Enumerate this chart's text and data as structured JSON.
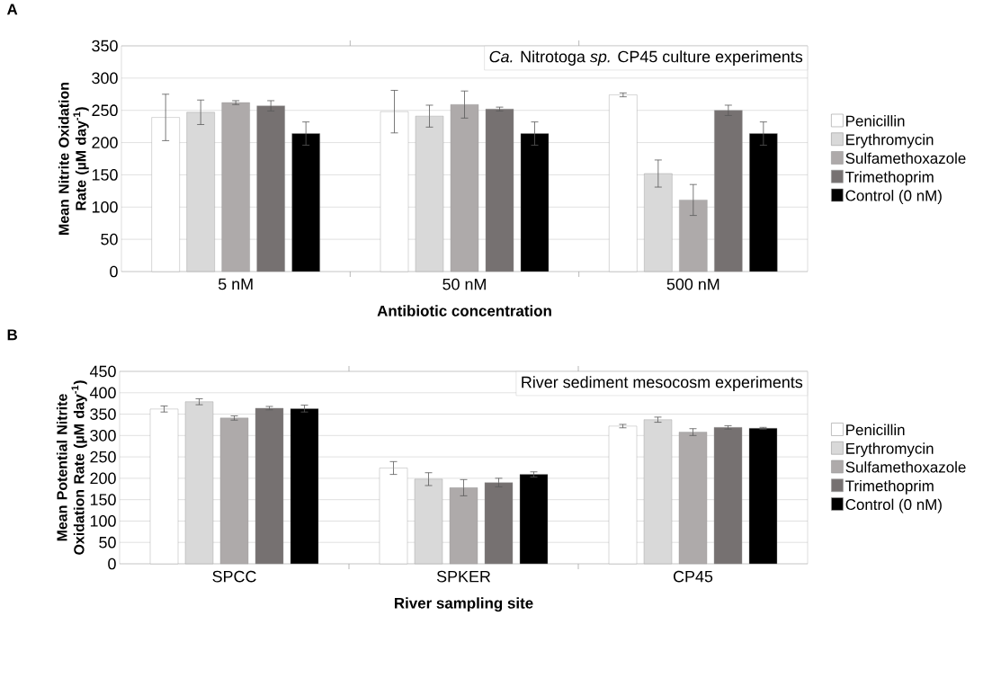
{
  "chart_data": [
    {
      "type": "bar",
      "annotations": [
        "A",
        "*Ca.* Nitrotoga *sp.* CP45 culture experiments"
      ],
      "xlabel": "Antibiotic concentration",
      "ylabel": "Mean Nitrite Oxidation Rate (µM day$^{-1}$)",
      "categories": [
        "5 nM",
        "50 nM",
        "500 nM"
      ],
      "ylim": [
        0,
        350
      ],
      "yticks": [
        0,
        50,
        100,
        150,
        200,
        250,
        300,
        350
      ],
      "grid": "y",
      "legend": "right",
      "series": [
        {
          "name": "Penicillin",
          "color": "#ffffff",
          "values": [
            239,
            248,
            274
          ],
          "errors": [
            36,
            33,
            3
          ]
        },
        {
          "name": "Erythromycin",
          "color": "#d9d9d9",
          "values": [
            247,
            241,
            152
          ],
          "errors": [
            19,
            17,
            21
          ]
        },
        {
          "name": "Sulfamethoxazole",
          "color": "#aeaaaa",
          "values": [
            262,
            259,
            111
          ],
          "errors": [
            3,
            21,
            24
          ]
        },
        {
          "name": "Trimethoprim",
          "color": "#767171",
          "values": [
            257,
            252,
            250
          ],
          "errors": [
            8,
            3,
            8
          ]
        },
        {
          "name": "Control (0 nM)",
          "color": "#000000",
          "values": [
            214,
            214,
            214
          ],
          "errors": [
            18,
            18,
            18
          ]
        }
      ]
    },
    {
      "type": "bar",
      "annotations": [
        "B",
        "River sediment mesocosm experiments"
      ],
      "xlabel": "River sampling site",
      "ylabel": "Mean Potential Nitrite Oxidation Rate (µM day$^{-1}$)",
      "categories": [
        "SPCC",
        "SPKER",
        "CP45"
      ],
      "ylim": [
        0,
        450
      ],
      "yticks": [
        0,
        50,
        100,
        150,
        200,
        250,
        300,
        350,
        400,
        450
      ],
      "grid": "y",
      "legend": "right",
      "series": [
        {
          "name": "Penicillin",
          "color": "#ffffff",
          "values": [
            362,
            224,
            322
          ],
          "errors": [
            7,
            15,
            4
          ]
        },
        {
          "name": "Erythromycin",
          "color": "#d9d9d9",
          "values": [
            379,
            198,
            337
          ],
          "errors": [
            7,
            15,
            6
          ]
        },
        {
          "name": "Sulfamethoxazole",
          "color": "#aeaaaa",
          "values": [
            341,
            178,
            308
          ],
          "errors": [
            5,
            19,
            8
          ]
        },
        {
          "name": "Trimethoprim",
          "color": "#767171",
          "values": [
            364,
            190,
            319
          ],
          "errors": [
            4,
            10,
            4
          ]
        },
        {
          "name": "Control (0 nM)",
          "color": "#000000",
          "values": [
            363,
            209,
            317
          ],
          "errors": [
            8,
            6,
            2
          ]
        }
      ]
    }
  ]
}
